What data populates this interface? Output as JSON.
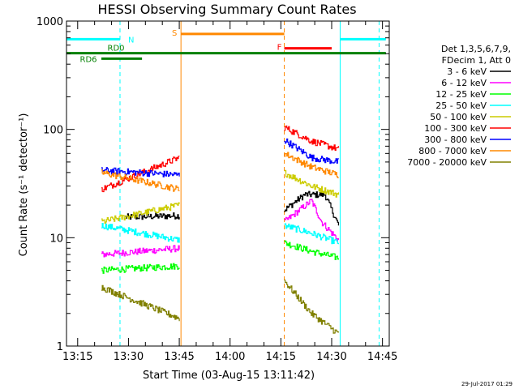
{
  "title": "HESSI Observing Summary Count Rates",
  "footer_date": "29-Jul-2017 01:29",
  "colors": {
    "axis": "#000000",
    "saa": "#00ffff",
    "flare": "#ff8800",
    "fast_rate": "#ff0000",
    "decimation": "#008000"
  },
  "chart_data": {
    "type": "line",
    "title": "HESSI Observing Summary Count Rates",
    "xlabel": "Start Time (03-Aug-15 13:11:42)",
    "ylabel": "Count Rate (s⁻¹ detector⁻¹)",
    "yscale": "log",
    "ylim": [
      1,
      1000
    ],
    "xlim_minutes": [
      11.7,
      107
    ],
    "x_ticks": [
      {
        "label": "13:15",
        "minute": 15
      },
      {
        "label": "13:30",
        "minute": 30
      },
      {
        "label": "13:45",
        "minute": 45
      },
      {
        "label": "14:00",
        "minute": 60
      },
      {
        "label": "14:15",
        "minute": 75
      },
      {
        "label": "14:30",
        "minute": 90
      },
      {
        "label": "14:45",
        "minute": 105
      }
    ],
    "y_ticks": [
      {
        "label": "1",
        "value": 1
      },
      {
        "label": "10",
        "value": 10
      },
      {
        "label": "100",
        "value": 100
      },
      {
        "label": "1000",
        "value": 1000
      }
    ],
    "legend_header": [
      "Det 1,3,5,6,7,9,",
      "FDecim 1, Att 0"
    ],
    "legend_position": "right",
    "data_intervals_minutes": [
      [
        22,
        45.5
      ],
      [
        76,
        92.5
      ]
    ],
    "series": [
      {
        "name": "3 - 6 keV",
        "color": "#000000",
        "seg1": [
          [
            29,
            15.5
          ],
          [
            45,
            16
          ]
        ],
        "seg2": [
          [
            76,
            18
          ],
          [
            82,
            25
          ],
          [
            88,
            25
          ],
          [
            92,
            13
          ]
        ]
      },
      {
        "name": "6 - 12 keV",
        "color": "#ff00ff",
        "seg1": [
          [
            22,
            7
          ],
          [
            45,
            8
          ]
        ],
        "seg2": [
          [
            76,
            14
          ],
          [
            84,
            22
          ],
          [
            87,
            14
          ],
          [
            92,
            9.5
          ]
        ]
      },
      {
        "name": "12 - 25 keV",
        "color": "#00ff00",
        "seg1": [
          [
            22,
            5
          ],
          [
            45,
            5.5
          ]
        ],
        "seg2": [
          [
            76,
            9
          ],
          [
            84,
            7.5
          ],
          [
            92,
            6.5
          ]
        ]
      },
      {
        "name": "25 - 50 keV",
        "color": "#00ffff",
        "seg1": [
          [
            22,
            13
          ],
          [
            45,
            9.5
          ]
        ],
        "seg2": [
          [
            76,
            13
          ],
          [
            84,
            11
          ],
          [
            92,
            9
          ]
        ]
      },
      {
        "name": "50 - 100 keV",
        "color": "#cccc00",
        "seg1": [
          [
            22,
            14
          ],
          [
            45,
            20
          ]
        ],
        "seg2": [
          [
            76,
            40
          ],
          [
            84,
            30
          ],
          [
            92,
            25
          ]
        ]
      },
      {
        "name": "100 - 300 keV",
        "color": "#ff0000",
        "seg1": [
          [
            22,
            28
          ],
          [
            45,
            55
          ]
        ],
        "seg2": [
          [
            76,
            105
          ],
          [
            84,
            78
          ],
          [
            92,
            66
          ]
        ]
      },
      {
        "name": "300 - 800 keV",
        "color": "#0000ff",
        "seg1": [
          [
            22,
            42
          ],
          [
            45,
            38
          ]
        ],
        "seg2": [
          [
            76,
            80
          ],
          [
            84,
            55
          ],
          [
            92,
            50
          ]
        ]
      },
      {
        "name": "800 - 7000 keV",
        "color": "#ff8800",
        "seg1": [
          [
            22,
            40
          ],
          [
            45,
            28
          ]
        ],
        "seg2": [
          [
            76,
            60
          ],
          [
            84,
            45
          ],
          [
            92,
            38
          ]
        ]
      },
      {
        "name": "7000 - 20000 keV",
        "color": "#808000",
        "seg1": [
          [
            22,
            3.5
          ],
          [
            45,
            1.8
          ]
        ],
        "seg2": [
          [
            76,
            4
          ],
          [
            84,
            2
          ],
          [
            92,
            1.3
          ]
        ]
      }
    ],
    "vertical_markers": [
      {
        "minute": 11.7,
        "color": "#00ffff",
        "style": "solid"
      },
      {
        "minute": 27.5,
        "color": "#00ffff",
        "style": "dashed"
      },
      {
        "minute": 45.5,
        "color": "#ff8800",
        "style": "solid"
      },
      {
        "minute": 76,
        "color": "#ff8800",
        "style": "dashed"
      },
      {
        "minute": 92.5,
        "color": "#00ffff",
        "style": "solid"
      },
      {
        "minute": 104,
        "color": "#00ffff",
        "style": "dashed"
      }
    ],
    "status_bars": [
      {
        "label": "N",
        "color": "#00ffff",
        "level": 680,
        "from": 11.7,
        "to": 27.5
      },
      {
        "label": "",
        "color": "#00ffff",
        "level": 680,
        "from": 92.5,
        "to": 106
      },
      {
        "label": "S",
        "color": "#ff8800",
        "level": 760,
        "from": 45.5,
        "to": 76
      },
      {
        "label": "F",
        "color": "#ff0000",
        "level": 560,
        "from": 76,
        "to": 90
      },
      {
        "label": "RD0",
        "color": "#008000",
        "level": 505,
        "from": 11.7,
        "to": 106
      },
      {
        "label": "RD6",
        "color": "#008000",
        "level": 450,
        "from": 22,
        "to": 34
      }
    ]
  }
}
